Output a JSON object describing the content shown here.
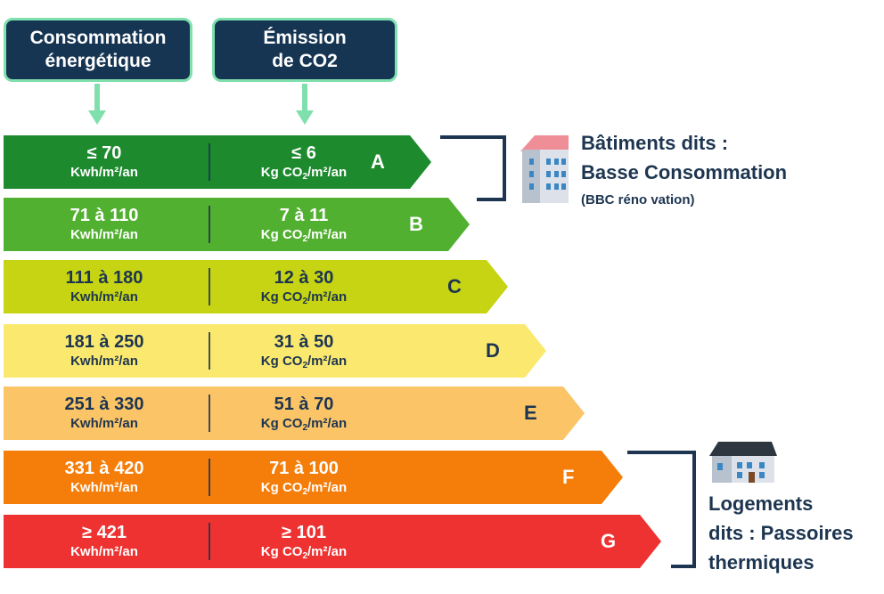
{
  "headers": {
    "consumption": {
      "line1": "Consommation",
      "line2": "énergétique"
    },
    "emission": {
      "line1": "Émission",
      "line2": "de CO2"
    }
  },
  "bands": [
    {
      "letter": "A",
      "consumption": "≤ 70",
      "consumption_unit": "Kwh/m²/an",
      "emission": "≤ 6",
      "color": "#1d8a2e"
    },
    {
      "letter": "B",
      "consumption": "71 à 110",
      "consumption_unit": "Kwh/m²/an",
      "emission": "7 à 11",
      "color": "#52b031"
    },
    {
      "letter": "C",
      "consumption": "111 à 180",
      "consumption_unit": "Kwh/m²/an",
      "emission": "12 à 30",
      "color": "#c6d413"
    },
    {
      "letter": "D",
      "consumption": "181 à 250",
      "consumption_unit": "Kwh/m²/an",
      "emission": "31 à 50",
      "color": "#fbe96f"
    },
    {
      "letter": "E",
      "consumption": "251 à 330",
      "consumption_unit": "Kwh/m²/an",
      "emission": "51 à 70",
      "color": "#fbc467"
    },
    {
      "letter": "F",
      "consumption": "331 à 420",
      "consumption_unit": "Kwh/m²/an",
      "emission": "71 à 100",
      "color": "#f57d0a"
    },
    {
      "letter": "G",
      "consumption": "≥ 421",
      "consumption_unit": "Kwh/m²/an",
      "emission": "≥ 101",
      "color": "#ee3131"
    }
  ],
  "emission_unit": {
    "prefix": "Kg CO",
    "subscript": "2",
    "suffix": "/m²/an"
  },
  "labels": {
    "bbc": {
      "line1": "Bâtiments dits :",
      "line2": "Basse Consommation",
      "sub": "(BBC réno vation)"
    },
    "passoires": {
      "line1": "Logements",
      "line2": "dits : Passoires",
      "line3": "thermiques"
    }
  },
  "icons": {
    "bbc": "apartment-building-icon",
    "passoires": "house-icon"
  },
  "colors": {
    "header_bg": "#163553",
    "header_border": "#7fe0ad",
    "arrow": "#7fe0ad",
    "text_dark": "#1d3550"
  }
}
